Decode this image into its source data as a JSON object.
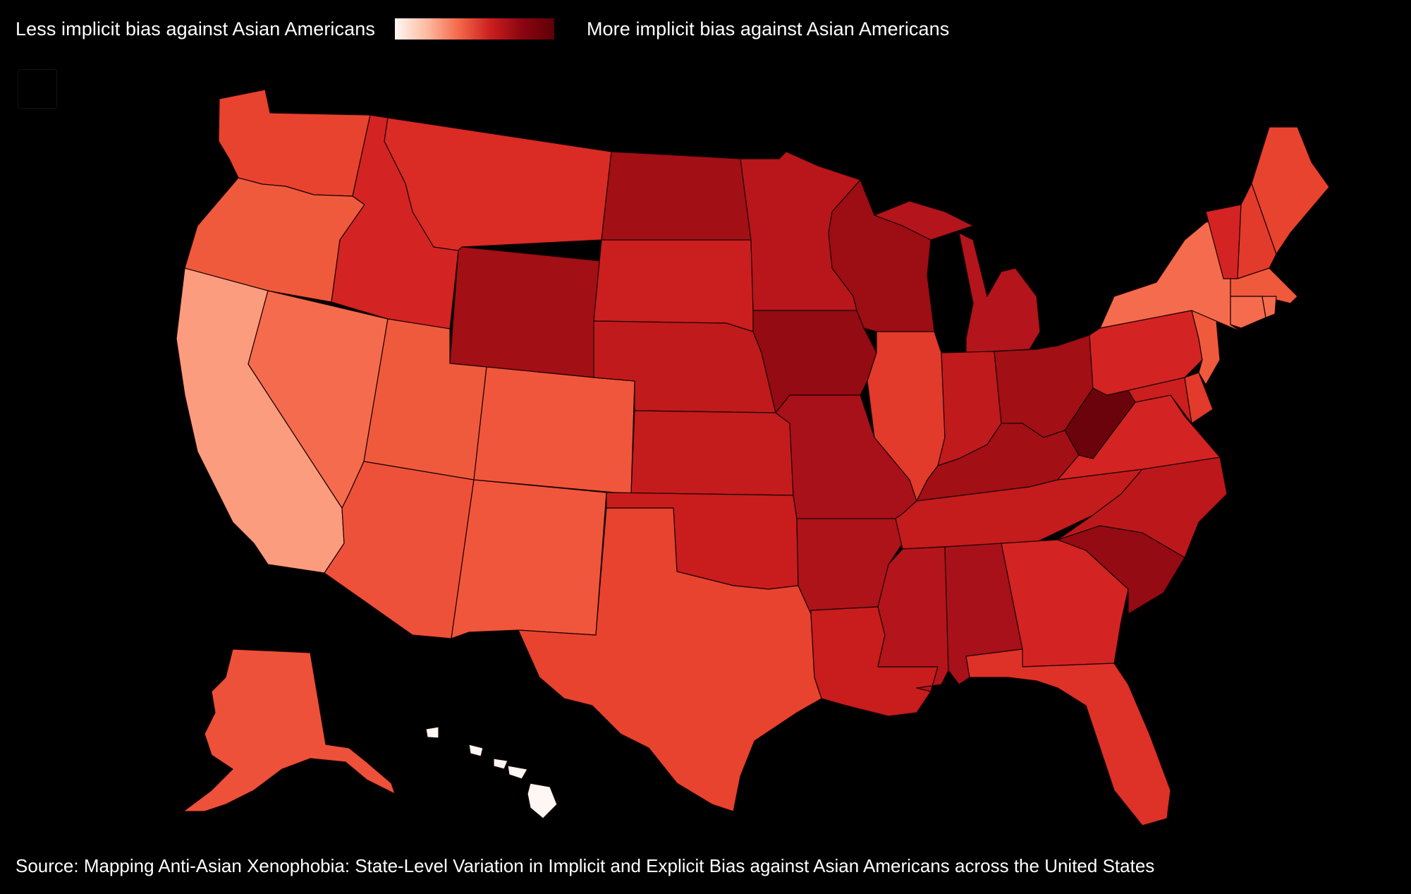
{
  "legend": {
    "low_label": "Less implicit bias against Asian Americans",
    "high_label": "More implicit bias against Asian Americans",
    "scale_colors": [
      "#fff7f3",
      "#fcbba1",
      "#f4684a",
      "#cb1e1e",
      "#8a0511",
      "#5e0008"
    ]
  },
  "source": "Source: Mapping Anti-Asian Xenophobia: State-Level Variation in Implicit and Explicit Bias against Asian Americans across the United States",
  "states": [
    {
      "name": "Washington",
      "color": "#e8432f"
    },
    {
      "name": "Oregon",
      "color": "#ef5a3d"
    },
    {
      "name": "California",
      "color": "#fb9c7e"
    },
    {
      "name": "Nevada",
      "color": "#f56b4d"
    },
    {
      "name": "Idaho",
      "color": "#d42323"
    },
    {
      "name": "Montana",
      "color": "#da2b25"
    },
    {
      "name": "Wyoming",
      "color": "#a20f15"
    },
    {
      "name": "Utah",
      "color": "#ef5a3d"
    },
    {
      "name": "Colorado",
      "color": "#f0563b"
    },
    {
      "name": "Arizona",
      "color": "#ee5139"
    },
    {
      "name": "New Mexico",
      "color": "#f0563b"
    },
    {
      "name": "North Dakota",
      "color": "#a20f15"
    },
    {
      "name": "South Dakota",
      "color": "#cb1e1e"
    },
    {
      "name": "Nebraska",
      "color": "#c01a1c"
    },
    {
      "name": "Kansas",
      "color": "#c41b1d"
    },
    {
      "name": "Oklahoma",
      "color": "#c81c1d"
    },
    {
      "name": "Texas",
      "color": "#e8432f"
    },
    {
      "name": "Minnesota",
      "color": "#b8161b"
    },
    {
      "name": "Iowa",
      "color": "#940b13"
    },
    {
      "name": "Missouri",
      "color": "#a8111a"
    },
    {
      "name": "Arkansas",
      "color": "#ae131a"
    },
    {
      "name": "Louisiana",
      "color": "#c81c1d"
    },
    {
      "name": "Wisconsin",
      "color": "#9c0d14"
    },
    {
      "name": "Illinois",
      "color": "#e23a2b"
    },
    {
      "name": "Michigan",
      "color": "#b4141b"
    },
    {
      "name": "Indiana",
      "color": "#c01a1c"
    },
    {
      "name": "Ohio",
      "color": "#a20f15"
    },
    {
      "name": "Kentucky",
      "color": "#a20f15"
    },
    {
      "name": "Tennessee",
      "color": "#c41b1d"
    },
    {
      "name": "Mississippi",
      "color": "#b4141b"
    },
    {
      "name": "Alabama",
      "color": "#a8111a"
    },
    {
      "name": "Georgia",
      "color": "#d42323"
    },
    {
      "name": "Florida",
      "color": "#de3128"
    },
    {
      "name": "South Carolina",
      "color": "#940b13"
    },
    {
      "name": "North Carolina",
      "color": "#bc181c"
    },
    {
      "name": "Virginia",
      "color": "#d42323"
    },
    {
      "name": "West Virginia",
      "color": "#6b030c"
    },
    {
      "name": "Maryland",
      "color": "#cb1e1e"
    },
    {
      "name": "Delaware",
      "color": "#e23a2b"
    },
    {
      "name": "Pennsylvania",
      "color": "#d42323"
    },
    {
      "name": "New Jersey",
      "color": "#ef5a3d"
    },
    {
      "name": "New York",
      "color": "#f56b4d"
    },
    {
      "name": "Vermont",
      "color": "#d42323"
    },
    {
      "name": "New Hampshire",
      "color": "#e23a2b"
    },
    {
      "name": "Maine",
      "color": "#e8432f"
    },
    {
      "name": "Massachusetts",
      "color": "#ef5a3d"
    },
    {
      "name": "Connecticut",
      "color": "#f56b4d"
    },
    {
      "name": "Rhode Island",
      "color": "#f56b4d"
    },
    {
      "name": "Alaska",
      "color": "#ee5139"
    },
    {
      "name": "Hawaii",
      "color": "#fff7f3"
    }
  ]
}
